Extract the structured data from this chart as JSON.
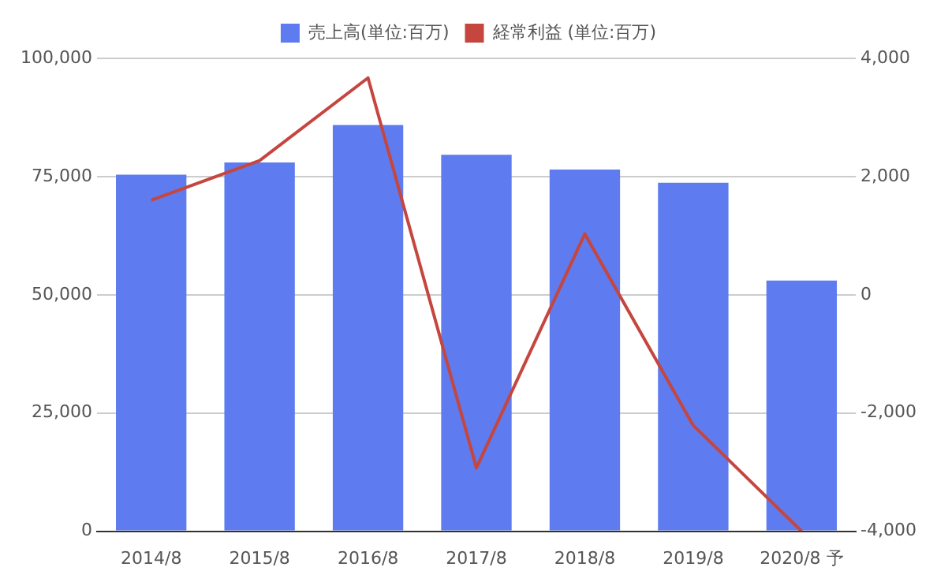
{
  "chart_data": {
    "type": "bar",
    "categories": [
      "2014/8",
      "2015/8",
      "2016/8",
      "2017/8",
      "2018/8",
      "2019/8",
      "2020/8 予"
    ],
    "series": [
      {
        "name": "売上高(単位:百万)",
        "color": "#5e7cf0",
        "values": [
          75400,
          78000,
          85900,
          79600,
          76500,
          73700,
          53000
        ]
      },
      {
        "name": "経常利益 (単位:百万)",
        "type": "line",
        "axis": "y2",
        "color": "#c5463f",
        "values": [
          1600,
          2270,
          3670,
          -2930,
          1030,
          -2210,
          -4000
        ]
      }
    ],
    "ylim": [
      0,
      100000
    ],
    "yticks": [
      {
        "value": 0,
        "label": "0"
      },
      {
        "value": 25000,
        "label": "25,000"
      },
      {
        "value": 50000,
        "label": "50,000"
      },
      {
        "value": 75000,
        "label": "75,000"
      },
      {
        "value": 100000,
        "label": "100,000"
      }
    ],
    "y2lim": [
      -4000,
      4000
    ],
    "y2ticks": [
      {
        "value": -4000,
        "label": "-4,000"
      },
      {
        "value": -2000,
        "label": "-2,000"
      },
      {
        "value": 0,
        "label": "0"
      },
      {
        "value": 2000,
        "label": "2,000"
      },
      {
        "value": 4000,
        "label": "4,000"
      }
    ],
    "grid": "y",
    "legend": "top",
    "marker": "none"
  }
}
